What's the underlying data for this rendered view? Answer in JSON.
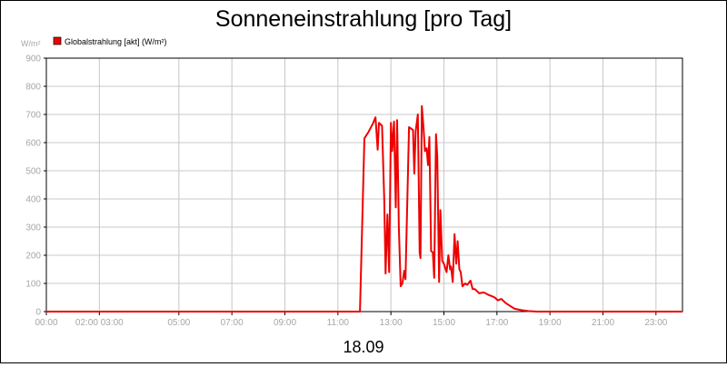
{
  "chart_data": {
    "type": "line",
    "title": "Sonneneinstrahlung [pro Tag]",
    "ylabel": "W/m²",
    "xlabel": "18.09",
    "ylim": [
      0,
      900
    ],
    "yticks": [
      0,
      100,
      200,
      300,
      400,
      500,
      600,
      700,
      800,
      900
    ],
    "xlim": [
      "00:00",
      "24:00"
    ],
    "xticks": [
      {
        "time": "00:00",
        "label": "00:00"
      },
      {
        "time": "02:00",
        "label": "02:00 03:00"
      },
      {
        "time": "05:00",
        "label": "05:00"
      },
      {
        "time": "07:00",
        "label": "07:00"
      },
      {
        "time": "09:00",
        "label": "09:00"
      },
      {
        "time": "11:00",
        "label": "11:00"
      },
      {
        "time": "13:00",
        "label": "13:00"
      },
      {
        "time": "15:00",
        "label": "15:00"
      },
      {
        "time": "17:00",
        "label": "17:00"
      },
      {
        "time": "19:00",
        "label": "19:00"
      },
      {
        "time": "21:00",
        "label": "21:00"
      },
      {
        "time": "23:00",
        "label": "23:00"
      }
    ],
    "grid": true,
    "legend_position": "top-left",
    "series": [
      {
        "name": "Globalstrahlung [akt] (W/m²)",
        "color": "#ee0000",
        "points": [
          [
            "00:00",
            0
          ],
          [
            "10:00",
            0
          ],
          [
            "11:50",
            0
          ],
          [
            "12:00",
            615
          ],
          [
            "12:10",
            640
          ],
          [
            "12:20",
            670
          ],
          [
            "12:25",
            690
          ],
          [
            "12:30",
            575
          ],
          [
            "12:33",
            670
          ],
          [
            "12:40",
            660
          ],
          [
            "12:45",
            390
          ],
          [
            "12:48",
            135
          ],
          [
            "12:52",
            345
          ],
          [
            "12:56",
            140
          ],
          [
            "13:00",
            670
          ],
          [
            "13:03",
            570
          ],
          [
            "13:07",
            675
          ],
          [
            "13:11",
            370
          ],
          [
            "13:14",
            680
          ],
          [
            "13:18",
            300
          ],
          [
            "13:22",
            90
          ],
          [
            "13:26",
            100
          ],
          [
            "13:30",
            145
          ],
          [
            "13:33",
            115
          ],
          [
            "13:41",
            655
          ],
          [
            "13:50",
            645
          ],
          [
            "13:53",
            490
          ],
          [
            "13:56",
            640
          ],
          [
            "14:01",
            700
          ],
          [
            "14:05",
            210
          ],
          [
            "14:07",
            190
          ],
          [
            "14:10",
            730
          ],
          [
            "14:14",
            650
          ],
          [
            "14:17",
            570
          ],
          [
            "14:21",
            580
          ],
          [
            "14:24",
            520
          ],
          [
            "14:27",
            620
          ],
          [
            "14:31",
            215
          ],
          [
            "14:35",
            210
          ],
          [
            "14:38",
            120
          ],
          [
            "14:42",
            630
          ],
          [
            "14:45",
            550
          ],
          [
            "14:49",
            105
          ],
          [
            "14:52",
            360
          ],
          [
            "14:56",
            180
          ],
          [
            "15:00",
            170
          ],
          [
            "15:06",
            140
          ],
          [
            "15:10",
            200
          ],
          [
            "15:14",
            150
          ],
          [
            "15:16",
            160
          ],
          [
            "15:20",
            105
          ],
          [
            "15:24",
            275
          ],
          [
            "15:28",
            170
          ],
          [
            "15:31",
            250
          ],
          [
            "15:35",
            150
          ],
          [
            "15:38",
            140
          ],
          [
            "15:42",
            90
          ],
          [
            "15:48",
            100
          ],
          [
            "15:53",
            95
          ],
          [
            "16:00",
            110
          ],
          [
            "16:05",
            80
          ],
          [
            "16:10",
            80
          ],
          [
            "16:20",
            65
          ],
          [
            "16:30",
            68
          ],
          [
            "16:40",
            60
          ],
          [
            "16:48",
            55
          ],
          [
            "16:55",
            50
          ],
          [
            "17:02",
            40
          ],
          [
            "17:10",
            45
          ],
          [
            "17:20",
            30
          ],
          [
            "17:30",
            20
          ],
          [
            "17:40",
            10
          ],
          [
            "17:55",
            5
          ],
          [
            "18:10",
            2
          ],
          [
            "18:30",
            0
          ],
          [
            "24:00",
            0
          ]
        ]
      }
    ]
  }
}
